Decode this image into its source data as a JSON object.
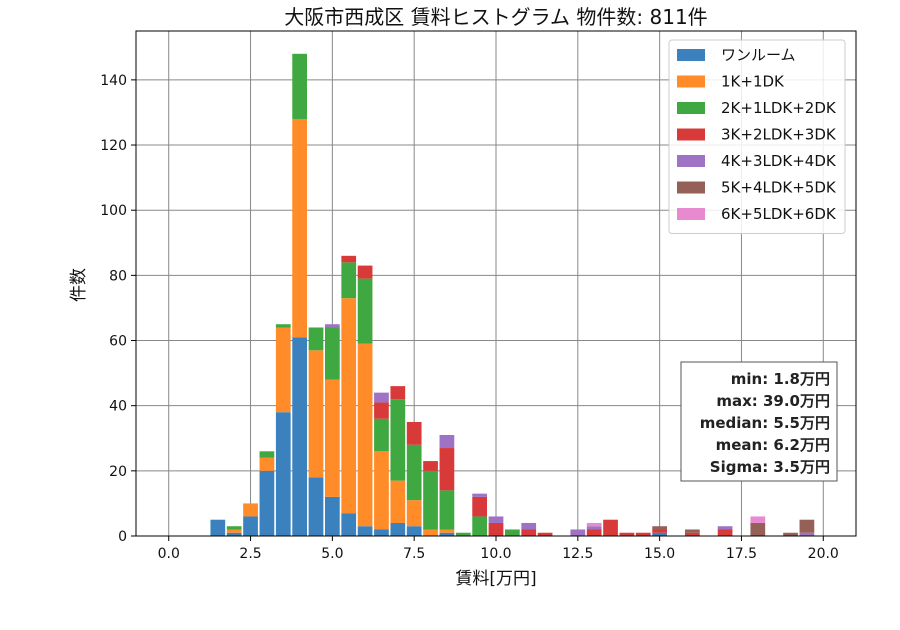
{
  "chart_data": {
    "type": "bar",
    "stacked": true,
    "title": "大阪市西成区 賃料ヒストグラム  物件数: 811件",
    "xlabel": "賃料[万円]",
    "ylabel": "件数",
    "xlim": [
      -1.0,
      21.0
    ],
    "ylim": [
      0,
      155
    ],
    "xticks": [
      "0.0",
      "2.5",
      "5.0",
      "7.5",
      "10.0",
      "12.5",
      "15.0",
      "17.5",
      "20.0"
    ],
    "yticks": [
      "0",
      "20",
      "40",
      "60",
      "80",
      "100",
      "120",
      "140"
    ],
    "grid": true,
    "legend_position": "top-right",
    "bin_width": 0.5,
    "x": [
      1.5,
      2.0,
      2.5,
      3.0,
      3.5,
      4.0,
      4.5,
      5.0,
      5.5,
      6.0,
      6.5,
      7.0,
      7.5,
      8.0,
      8.5,
      9.0,
      9.5,
      10.0,
      10.5,
      11.0,
      11.5,
      12.5,
      13.0,
      13.5,
      14.0,
      14.5,
      15.0,
      16.0,
      17.0,
      18.0,
      19.0,
      19.5
    ],
    "series": [
      {
        "name": "ワンルーム",
        "color": "#3b81bd",
        "values": [
          5,
          1,
          6,
          20,
          38,
          61,
          18,
          12,
          7,
          3,
          2,
          4,
          3,
          0,
          1,
          0,
          0,
          0,
          0,
          0,
          0,
          0,
          0,
          0,
          0,
          0,
          1,
          0,
          0,
          0,
          0,
          0
        ]
      },
      {
        "name": "1K+1DK",
        "color": "#ff8c28",
        "values": [
          0,
          1,
          4,
          4,
          26,
          67,
          39,
          36,
          66,
          56,
          24,
          13,
          8,
          2,
          1,
          0,
          0,
          0,
          0,
          0,
          0,
          0,
          0,
          0,
          0,
          0,
          0,
          0,
          0,
          0,
          0,
          0
        ]
      },
      {
        "name": "2K+1LDK+2DK",
        "color": "#40a840",
        "values": [
          0,
          1,
          0,
          2,
          1,
          20,
          7,
          16,
          11,
          20,
          10,
          25,
          17,
          18,
          12,
          1,
          6,
          0,
          2,
          0,
          0,
          0,
          0,
          0,
          0,
          0,
          0,
          0,
          0,
          0,
          0,
          0
        ]
      },
      {
        "name": "3K+2LDK+3DK",
        "color": "#d83a3a",
        "values": [
          0,
          0,
          0,
          0,
          0,
          0,
          0,
          0,
          2,
          4,
          5,
          4,
          7,
          3,
          13,
          0,
          6,
          4,
          0,
          2,
          1,
          0,
          2,
          5,
          1,
          1,
          1,
          1,
          2,
          0,
          0,
          0
        ]
      },
      {
        "name": "4K+3LDK+4DK",
        "color": "#9e72c4",
        "values": [
          0,
          0,
          0,
          0,
          0,
          0,
          0,
          1,
          0,
          0,
          3,
          0,
          0,
          0,
          4,
          0,
          1,
          2,
          0,
          2,
          0,
          2,
          1,
          0,
          0,
          0,
          0,
          0,
          1,
          0,
          0,
          1
        ]
      },
      {
        "name": "5K+4LDK+5DK",
        "color": "#946058",
        "values": [
          0,
          0,
          0,
          0,
          0,
          0,
          0,
          0,
          0,
          0,
          0,
          0,
          0,
          0,
          0,
          0,
          0,
          0,
          0,
          0,
          0,
          0,
          0,
          0,
          0,
          0,
          1,
          1,
          0,
          4,
          1,
          4
        ]
      },
      {
        "name": "6K+5LDK+6DK",
        "color": "#e88ad0",
        "values": [
          0,
          0,
          0,
          0,
          0,
          0,
          0,
          0,
          0,
          0,
          0,
          0,
          0,
          0,
          0,
          0,
          0,
          0,
          0,
          0,
          0,
          0,
          1,
          0,
          0,
          0,
          0,
          0,
          0,
          2,
          0,
          0
        ]
      }
    ],
    "stats": [
      "min: 1.8万円",
      "max: 39.0万円",
      "median: 5.5万円",
      "mean: 6.2万円",
      "Sigma: 3.5万円"
    ]
  }
}
